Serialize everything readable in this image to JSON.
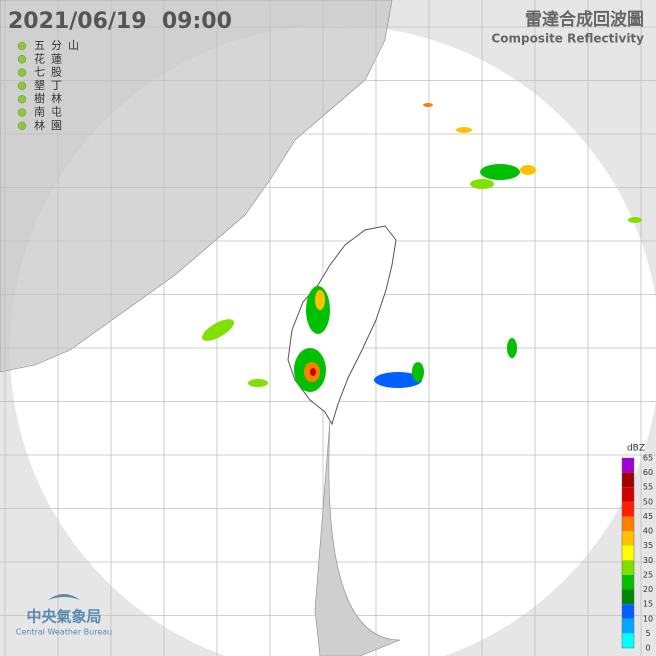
{
  "header": {
    "timestamp": "2021/06/19  09:00",
    "title_zh": "雷達合成回波圖",
    "title_en": "Composite Reflectivity"
  },
  "stations": [
    "五分山",
    "花蓮",
    "七股",
    "墾丁",
    "樹林",
    "南屯",
    "林園"
  ],
  "legend": {
    "unit": "dBZ",
    "levels": [
      65,
      60,
      55,
      50,
      45,
      40,
      35,
      30,
      25,
      20,
      15,
      10,
      5,
      0
    ],
    "colors": [
      "#ff00ff",
      "#a000d0",
      "#a00000",
      "#d00000",
      "#ff2000",
      "#ff8000",
      "#ffc000",
      "#ffff00",
      "#80e000",
      "#00c000",
      "#008800",
      "#0060ff",
      "#00a8ff",
      "#00ffff"
    ]
  },
  "logo": {
    "name_zh": "中央氣象局",
    "name_en": "Central Weather Bureau"
  }
}
